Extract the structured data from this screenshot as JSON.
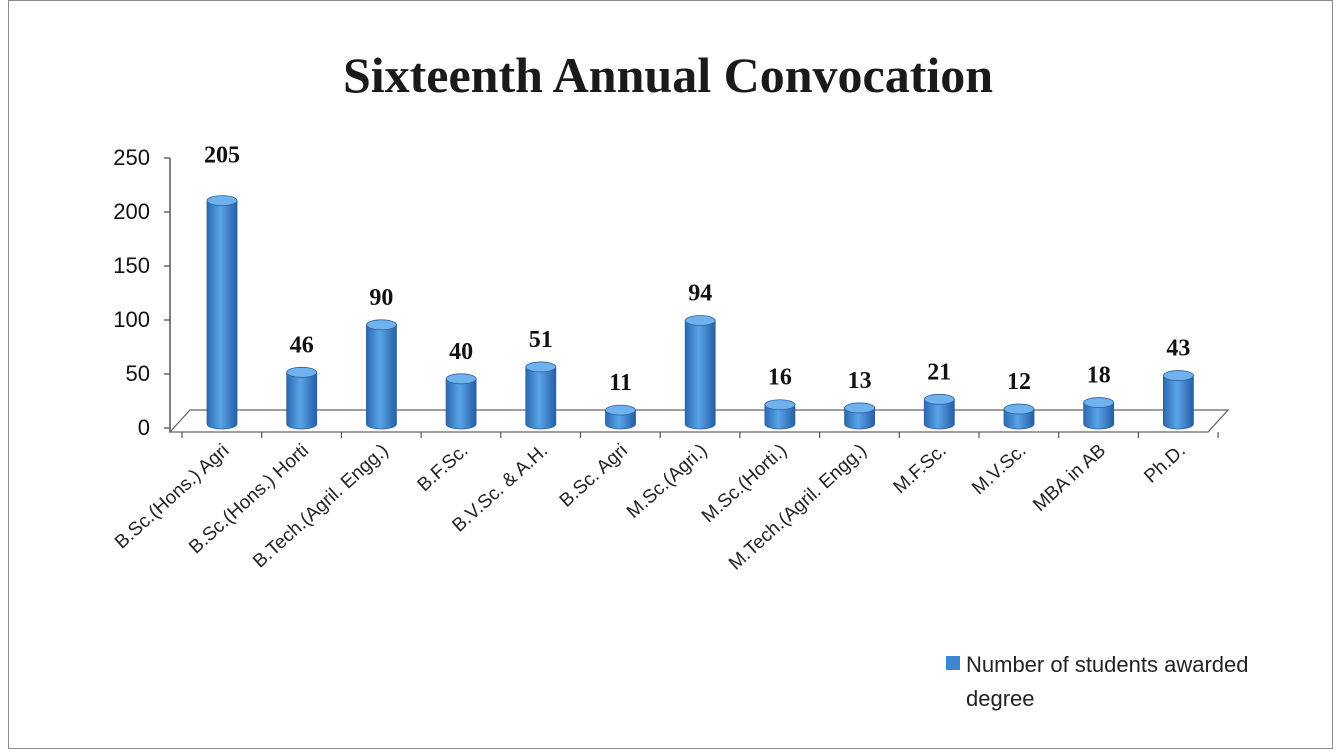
{
  "chart_data": {
    "type": "bar",
    "title": "Sixteenth Annual Convocation",
    "xlabel": "",
    "ylabel": "",
    "ylim": [
      0,
      250
    ],
    "yticks": [
      0,
      50,
      100,
      150,
      200,
      250
    ],
    "categories": [
      "B.Sc.(Hons.) Agri",
      "B.Sc.(Hons.) Horti",
      "B.Tech.(Agril. Engg.)",
      "B.F.Sc.",
      "B.V.Sc. & A.H.",
      "B.Sc. Agri",
      "M.Sc.(Agri.)",
      "M.Sc.(Horti.)",
      "M.Tech.(Agril. Engg.)",
      "M.F.Sc.",
      "M.V.Sc.",
      "MBA in AB",
      "Ph.D."
    ],
    "series": [
      {
        "name": "Number of students awarded degree",
        "values": [
          205,
          46,
          90,
          40,
          51,
          11,
          94,
          16,
          13,
          21,
          12,
          18,
          43
        ],
        "color": "#3d86d2"
      }
    ],
    "legend_lines": [
      "Number of students awarded",
      "degree"
    ],
    "legend_position": "bottom-right",
    "grid": false
  }
}
